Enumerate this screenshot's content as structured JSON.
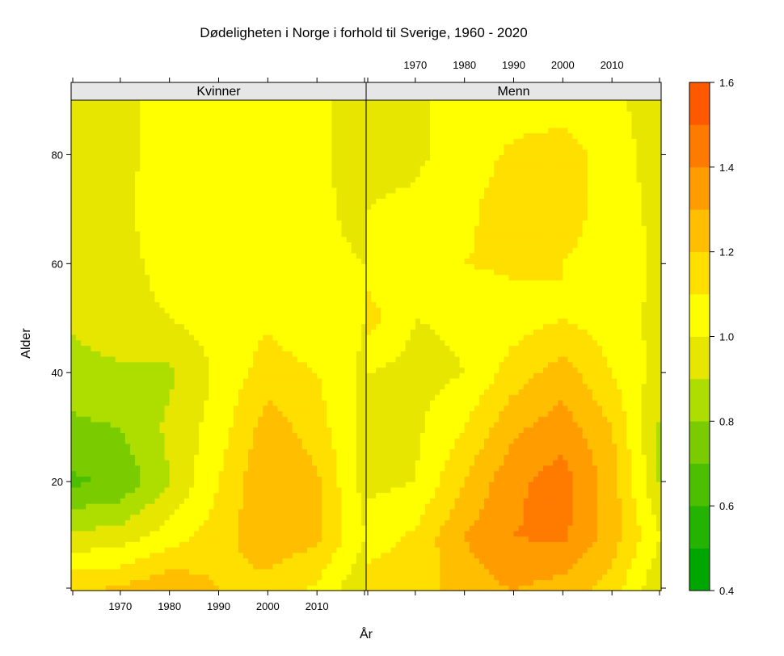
{
  "chart_data": {
    "type": "heatmap",
    "title": "Dødeligheten i Norge i forhold til Sverige, 1960 - 2020",
    "xlabel": "År",
    "ylabel": "Alder",
    "xlim": [
      1960,
      2020
    ],
    "ylim": [
      0,
      90
    ],
    "x_ticks": [
      1970,
      1980,
      1990,
      2000,
      2010
    ],
    "y_ticks": [
      20,
      40,
      60,
      80
    ],
    "panels": [
      {
        "name": "Kvinner",
        "grid_x": [
          1960,
          1970,
          1980,
          1990,
          2000,
          2010,
          2020
        ],
        "grid_y": [
          0,
          10,
          20,
          30,
          40,
          50,
          60,
          70,
          80,
          90
        ],
        "z": [
          [
            1.2,
            1.22,
            1.3,
            1.2,
            1.15,
            1.08,
            0.9
          ],
          [
            0.92,
            0.95,
            1.05,
            1.15,
            1.28,
            1.22,
            1.0
          ],
          [
            0.68,
            0.72,
            0.9,
            1.1,
            1.3,
            1.22,
            0.95
          ],
          [
            0.78,
            0.8,
            0.92,
            1.05,
            1.25,
            1.15,
            0.95
          ],
          [
            0.85,
            0.88,
            0.88,
            1.02,
            1.15,
            1.1,
            0.98
          ],
          [
            0.92,
            0.98,
            1.0,
            1.05,
            1.08,
            1.02,
            1.0
          ],
          [
            0.97,
            0.98,
            1.02,
            1.0,
            1.02,
            1.02,
            1.0
          ],
          [
            0.98,
            0.98,
            1.05,
            1.05,
            1.05,
            1.02,
            0.97
          ],
          [
            0.95,
            0.97,
            1.05,
            1.05,
            1.05,
            1.02,
            0.95
          ],
          [
            0.95,
            0.97,
            1.05,
            1.05,
            1.05,
            1.02,
            0.95
          ]
        ]
      },
      {
        "name": "Menn",
        "grid_x": [
          1960,
          1970,
          1980,
          1990,
          2000,
          2010,
          2020
        ],
        "grid_y": [
          0,
          10,
          20,
          30,
          40,
          50,
          60,
          70,
          80,
          90
        ],
        "z": [
          [
            1.15,
            1.15,
            1.25,
            1.3,
            1.25,
            1.15,
            0.9
          ],
          [
            1.05,
            1.12,
            1.3,
            1.4,
            1.42,
            1.25,
            1.0
          ],
          [
            0.97,
            1.0,
            1.2,
            1.38,
            1.45,
            1.25,
            0.88
          ],
          [
            0.96,
            0.98,
            1.1,
            1.28,
            1.35,
            1.2,
            0.88
          ],
          [
            1.0,
            0.96,
            1.0,
            1.15,
            1.25,
            1.1,
            0.95
          ],
          [
            1.15,
            1.0,
            1.02,
            1.05,
            1.1,
            1.05,
            0.97
          ],
          [
            1.05,
            1.02,
            1.1,
            1.12,
            1.1,
            1.05,
            0.98
          ],
          [
            1.0,
            1.02,
            1.08,
            1.15,
            1.15,
            1.05,
            0.97
          ],
          [
            0.97,
            0.98,
            1.05,
            1.12,
            1.15,
            1.05,
            0.95
          ],
          [
            0.97,
            0.98,
            1.05,
            1.05,
            1.05,
            1.02,
            0.95
          ]
        ]
      }
    ],
    "colorbar": {
      "breaks": [
        0.4,
        0.5,
        0.6,
        0.7,
        0.8,
        0.9,
        1.0,
        1.1,
        1.2,
        1.3,
        1.4,
        1.5,
        1.6
      ],
      "colors": [
        "#00a600",
        "#24b300",
        "#4cbf00",
        "#7acc00",
        "#aede00",
        "#e6e600",
        "#ffff00",
        "#ffdf00",
        "#ffbf00",
        "#ff9d00",
        "#ff7b00",
        "#ff5900",
        "#ff3a00"
      ],
      "tick_labels": [
        "0.4",
        "0.6",
        "0.8",
        "1.0",
        "1.2",
        "1.4",
        "1.6"
      ]
    }
  }
}
